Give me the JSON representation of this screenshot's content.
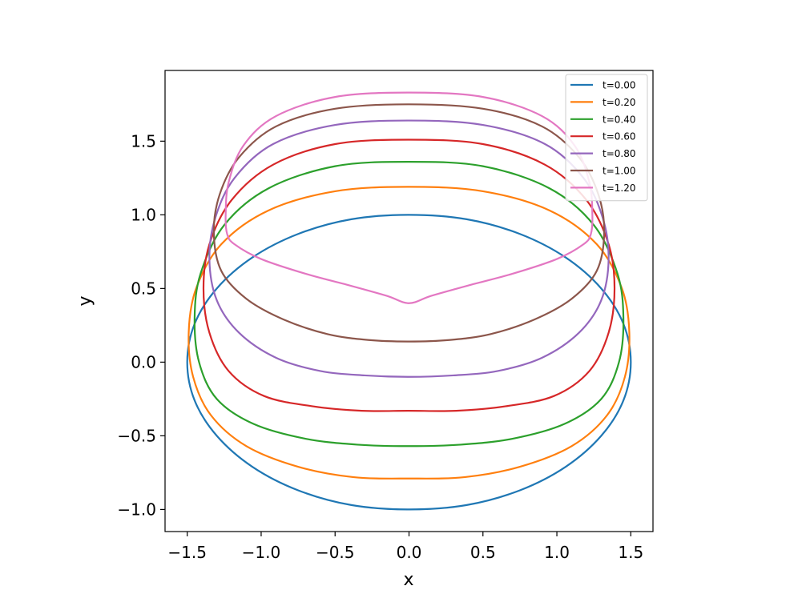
{
  "chart_data": {
    "type": "line",
    "title": "",
    "xlabel": "x",
    "ylabel": "y",
    "xlim": [
      -1.65,
      1.65
    ],
    "ylim": [
      -1.15,
      1.98
    ],
    "xticks": [
      -1.5,
      -1.0,
      -0.5,
      0.0,
      0.5,
      1.0,
      1.5
    ],
    "yticks": [
      -1.0,
      -0.5,
      0.0,
      0.5,
      1.0,
      1.5
    ],
    "xtick_labels": [
      "−1.5",
      "−1.0",
      "−0.5",
      "0.0",
      "0.5",
      "1.0",
      "1.5"
    ],
    "ytick_labels": [
      "−1.0",
      "−0.5",
      "0.0",
      "0.5",
      "1.0",
      "1.5"
    ],
    "grid": false,
    "legend_position": "top-right",
    "series": [
      {
        "name": "t=0.00",
        "color": "#1f77b4",
        "x": [
          0.0,
          0.39,
          0.75,
          1.06,
          1.3,
          1.45,
          1.5,
          1.45,
          1.3,
          1.06,
          0.75,
          0.39,
          0.0,
          -0.39,
          -0.75,
          -1.06,
          -1.3,
          -1.45,
          -1.5,
          -1.45,
          -1.3,
          -1.06,
          -0.75,
          -0.39,
          0.0
        ],
        "y": [
          1.0,
          0.97,
          0.87,
          0.71,
          0.5,
          0.26,
          0.0,
          -0.26,
          -0.5,
          -0.71,
          -0.87,
          -0.97,
          -1.0,
          -0.97,
          -0.87,
          -0.71,
          -0.5,
          -0.26,
          0.0,
          0.26,
          0.5,
          0.71,
          0.87,
          0.97,
          1.0
        ]
      },
      {
        "name": "t=0.20",
        "color": "#ff7f0e",
        "x": [
          0.0,
          0.5,
          0.95,
          1.27,
          1.44,
          1.49,
          1.46,
          1.34,
          1.1,
          0.75,
          0.38,
          0.0,
          -0.38,
          -0.75,
          -1.1,
          -1.34,
          -1.46,
          -1.49,
          -1.44,
          -1.27,
          -0.95,
          -0.5,
          0.0
        ],
        "y": [
          1.19,
          1.16,
          1.03,
          0.8,
          0.5,
          0.2,
          -0.1,
          -0.36,
          -0.57,
          -0.71,
          -0.78,
          -0.79,
          -0.78,
          -0.71,
          -0.57,
          -0.36,
          -0.1,
          0.2,
          0.5,
          0.8,
          1.03,
          1.16,
          1.19
        ]
      },
      {
        "name": "t=0.40",
        "color": "#2ca02c",
        "x": [
          0.0,
          0.5,
          0.95,
          1.25,
          1.41,
          1.45,
          1.42,
          1.3,
          1.05,
          0.7,
          0.35,
          0.0,
          -0.35,
          -0.7,
          -1.05,
          -1.3,
          -1.42,
          -1.45,
          -1.41,
          -1.25,
          -0.95,
          -0.5,
          0.0
        ],
        "y": [
          1.36,
          1.33,
          1.18,
          0.93,
          0.6,
          0.3,
          0.0,
          -0.25,
          -0.42,
          -0.52,
          -0.56,
          -0.57,
          -0.56,
          -0.52,
          -0.42,
          -0.25,
          0.0,
          0.3,
          0.6,
          0.93,
          1.18,
          1.33,
          1.36
        ]
      },
      {
        "name": "t=0.60",
        "color": "#d62728",
        "x": [
          0.0,
          0.5,
          0.92,
          1.2,
          1.35,
          1.39,
          1.35,
          1.22,
          0.98,
          0.65,
          0.32,
          0.0,
          -0.32,
          -0.65,
          -0.98,
          -1.22,
          -1.35,
          -1.39,
          -1.35,
          -1.2,
          -0.92,
          -0.5,
          0.0
        ],
        "y": [
          1.51,
          1.48,
          1.34,
          1.1,
          0.8,
          0.5,
          0.2,
          -0.06,
          -0.23,
          -0.3,
          -0.33,
          -0.33,
          -0.33,
          -0.3,
          -0.23,
          -0.06,
          0.2,
          0.5,
          0.8,
          1.1,
          1.34,
          1.48,
          1.51
        ]
      },
      {
        "name": "t=0.80",
        "color": "#9467bd",
        "x": [
          0.0,
          0.5,
          0.92,
          1.18,
          1.31,
          1.35,
          1.3,
          1.15,
          0.9,
          0.6,
          0.3,
          0.0,
          -0.3,
          -0.6,
          -0.9,
          -1.15,
          -1.3,
          -1.35,
          -1.31,
          -1.18,
          -0.92,
          -0.5,
          0.0
        ],
        "y": [
          1.64,
          1.61,
          1.48,
          1.25,
          0.98,
          0.7,
          0.42,
          0.2,
          0.03,
          -0.06,
          -0.09,
          -0.1,
          -0.09,
          -0.06,
          0.03,
          0.2,
          0.42,
          0.7,
          0.98,
          1.25,
          1.48,
          1.61,
          1.64
        ]
      },
      {
        "name": "t=1.00",
        "color": "#8c564b",
        "x": [
          0.0,
          0.5,
          0.9,
          1.15,
          1.28,
          1.32,
          1.27,
          1.1,
          0.85,
          0.55,
          0.27,
          0.0,
          -0.27,
          -0.55,
          -0.85,
          -1.1,
          -1.27,
          -1.32,
          -1.28,
          -1.15,
          -0.9,
          -0.5,
          0.0
        ],
        "y": [
          1.75,
          1.72,
          1.6,
          1.39,
          1.14,
          0.88,
          0.62,
          0.43,
          0.29,
          0.19,
          0.15,
          0.14,
          0.15,
          0.19,
          0.29,
          0.43,
          0.62,
          0.88,
          1.14,
          1.39,
          1.6,
          1.72,
          1.75
        ]
      },
      {
        "name": "t=1.20",
        "color": "#e377c2",
        "x": [
          0.0,
          0.5,
          0.9,
          1.12,
          1.22,
          1.24,
          1.23,
          1.18,
          1.0,
          0.7,
          0.4,
          0.15,
          0.0,
          -0.15,
          -0.4,
          -0.7,
          -1.0,
          -1.18,
          -1.23,
          -1.24,
          -1.22,
          -1.12,
          -0.9,
          -0.5,
          0.0
        ],
        "y": [
          1.83,
          1.8,
          1.67,
          1.47,
          1.22,
          1.0,
          0.87,
          0.8,
          0.7,
          0.6,
          0.52,
          0.45,
          0.4,
          0.45,
          0.52,
          0.6,
          0.7,
          0.8,
          0.87,
          1.0,
          1.22,
          1.47,
          1.67,
          1.8,
          1.83
        ]
      }
    ]
  }
}
